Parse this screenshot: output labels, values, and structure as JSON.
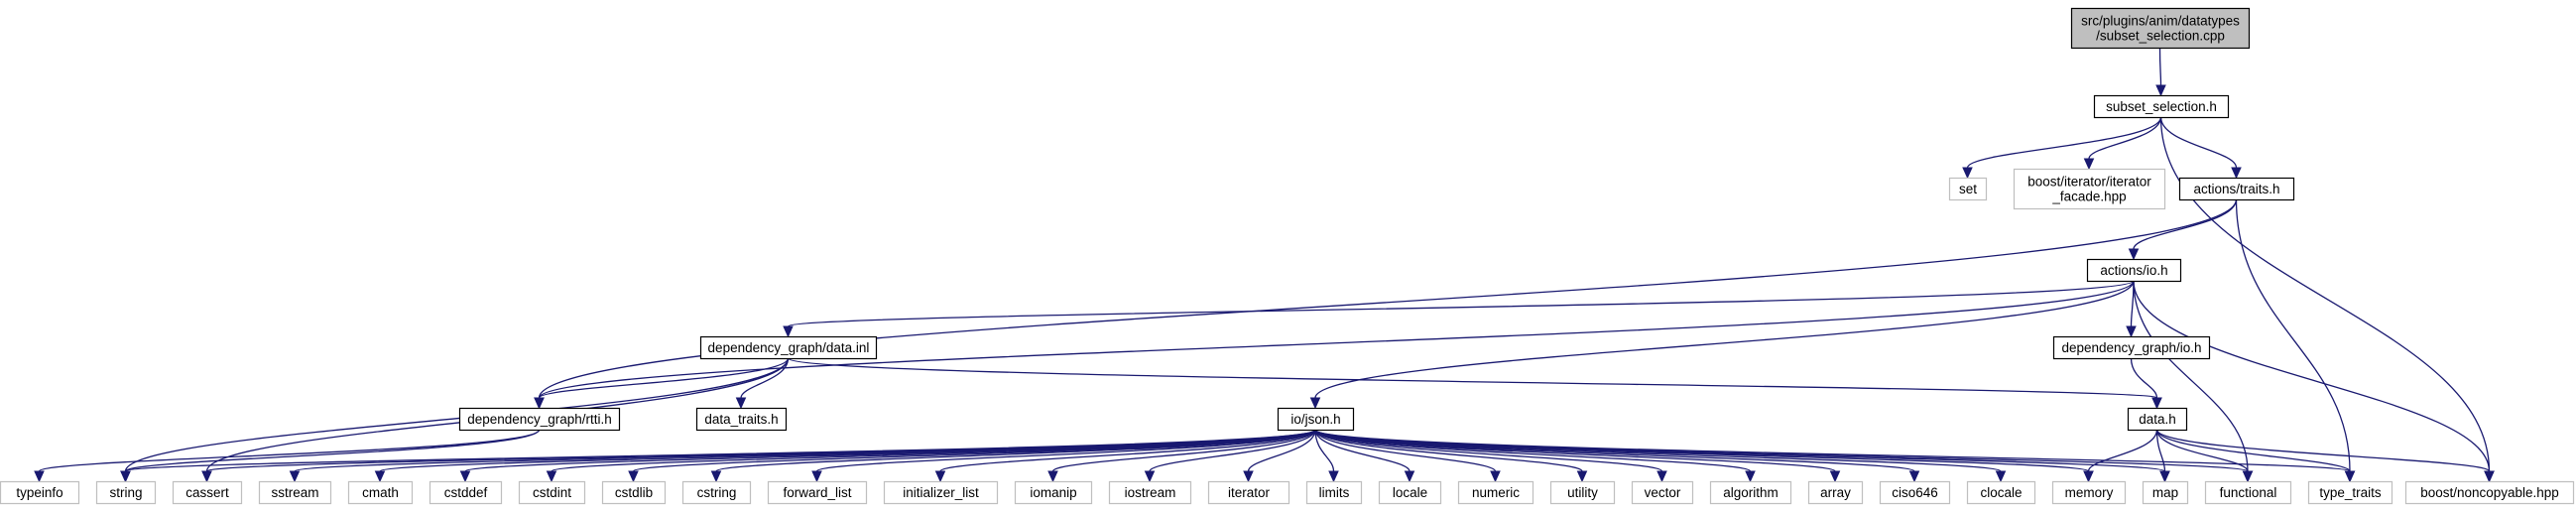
{
  "diagram": {
    "nodes": [
      {
        "id": "root",
        "lines": [
          "src/plugins/anim/datatypes",
          "/subset_selection.cpp"
        ],
        "style": "main"
      },
      {
        "id": "subset_selection_h",
        "lines": [
          "subset_selection.h"
        ],
        "style": "solid"
      },
      {
        "id": "set",
        "lines": [
          "set"
        ],
        "style": "ext"
      },
      {
        "id": "iterator_facade",
        "lines": [
          "boost/iterator/iterator",
          "_facade.hpp"
        ],
        "style": "ext"
      },
      {
        "id": "actions_traits",
        "lines": [
          "actions/traits.h"
        ],
        "style": "solid"
      },
      {
        "id": "boost_noncopyable",
        "lines": [
          "boost/noncopyable.hpp"
        ],
        "style": "ext"
      },
      {
        "id": "actions_io",
        "lines": [
          "actions/io.h"
        ],
        "style": "solid"
      },
      {
        "id": "dg_data_inl",
        "lines": [
          "dependency_graph/data.inl"
        ],
        "style": "solid"
      },
      {
        "id": "dg_io",
        "lines": [
          "dependency_graph/io.h"
        ],
        "style": "solid"
      },
      {
        "id": "dg_rtti",
        "lines": [
          "dependency_graph/rtti.h"
        ],
        "style": "solid"
      },
      {
        "id": "data_traits",
        "lines": [
          "data_traits.h"
        ],
        "style": "solid"
      },
      {
        "id": "io_json",
        "lines": [
          "io/json.h"
        ],
        "style": "solid"
      },
      {
        "id": "data_h",
        "lines": [
          "data.h"
        ],
        "style": "solid"
      },
      {
        "id": "typeinfo",
        "lines": [
          "typeinfo"
        ],
        "style": "ext"
      },
      {
        "id": "string",
        "lines": [
          "string"
        ],
        "style": "ext"
      },
      {
        "id": "cassert",
        "lines": [
          "cassert"
        ],
        "style": "ext"
      },
      {
        "id": "sstream",
        "lines": [
          "sstream"
        ],
        "style": "ext"
      },
      {
        "id": "cmath",
        "lines": [
          "cmath"
        ],
        "style": "ext"
      },
      {
        "id": "cstddef",
        "lines": [
          "cstddef"
        ],
        "style": "ext"
      },
      {
        "id": "cstdint",
        "lines": [
          "cstdint"
        ],
        "style": "ext"
      },
      {
        "id": "cstdlib",
        "lines": [
          "cstdlib"
        ],
        "style": "ext"
      },
      {
        "id": "cstring",
        "lines": [
          "cstring"
        ],
        "style": "ext"
      },
      {
        "id": "forward_list",
        "lines": [
          "forward_list"
        ],
        "style": "ext"
      },
      {
        "id": "initializer_list",
        "lines": [
          "initializer_list"
        ],
        "style": "ext"
      },
      {
        "id": "iomanip",
        "lines": [
          "iomanip"
        ],
        "style": "ext"
      },
      {
        "id": "iostream",
        "lines": [
          "iostream"
        ],
        "style": "ext"
      },
      {
        "id": "iterator",
        "lines": [
          "iterator"
        ],
        "style": "ext"
      },
      {
        "id": "limits",
        "lines": [
          "limits"
        ],
        "style": "ext"
      },
      {
        "id": "locale",
        "lines": [
          "locale"
        ],
        "style": "ext"
      },
      {
        "id": "numeric",
        "lines": [
          "numeric"
        ],
        "style": "ext"
      },
      {
        "id": "utility",
        "lines": [
          "utility"
        ],
        "style": "ext"
      },
      {
        "id": "vector",
        "lines": [
          "vector"
        ],
        "style": "ext"
      },
      {
        "id": "algorithm",
        "lines": [
          "algorithm"
        ],
        "style": "ext"
      },
      {
        "id": "array",
        "lines": [
          "array"
        ],
        "style": "ext"
      },
      {
        "id": "ciso646",
        "lines": [
          "ciso646"
        ],
        "style": "ext"
      },
      {
        "id": "clocale",
        "lines": [
          "clocale"
        ],
        "style": "ext"
      },
      {
        "id": "memory",
        "lines": [
          "memory"
        ],
        "style": "ext"
      },
      {
        "id": "map",
        "lines": [
          "map"
        ],
        "style": "ext"
      },
      {
        "id": "functional",
        "lines": [
          "functional"
        ],
        "style": "ext"
      },
      {
        "id": "type_traits",
        "lines": [
          "type_traits"
        ],
        "style": "ext"
      }
    ],
    "edges": [
      [
        "root",
        "subset_selection_h"
      ],
      [
        "subset_selection_h",
        "set"
      ],
      [
        "subset_selection_h",
        "iterator_facade"
      ],
      [
        "subset_selection_h",
        "actions_traits"
      ],
      [
        "subset_selection_h",
        "boost_noncopyable"
      ],
      [
        "actions_traits",
        "dg_rtti"
      ],
      [
        "actions_traits",
        "actions_io"
      ],
      [
        "actions_traits",
        "type_traits"
      ],
      [
        "actions_io",
        "dg_rtti"
      ],
      [
        "actions_io",
        "dg_data_inl"
      ],
      [
        "actions_io",
        "io_json"
      ],
      [
        "actions_io",
        "dg_io"
      ],
      [
        "actions_io",
        "functional"
      ],
      [
        "actions_io",
        "boost_noncopyable"
      ],
      [
        "dg_data_inl",
        "dg_rtti"
      ],
      [
        "dg_data_inl",
        "data_traits"
      ],
      [
        "dg_data_inl",
        "cassert"
      ],
      [
        "dg_data_inl",
        "string"
      ],
      [
        "dg_data_inl",
        "data_h"
      ],
      [
        "dg_io",
        "data_h"
      ],
      [
        "dg_rtti",
        "typeinfo"
      ],
      [
        "dg_rtti",
        "string"
      ],
      [
        "io_json",
        "string"
      ],
      [
        "io_json",
        "cassert"
      ],
      [
        "io_json",
        "sstream"
      ],
      [
        "io_json",
        "cmath"
      ],
      [
        "io_json",
        "cstddef"
      ],
      [
        "io_json",
        "cstdint"
      ],
      [
        "io_json",
        "cstdlib"
      ],
      [
        "io_json",
        "cstring"
      ],
      [
        "io_json",
        "forward_list"
      ],
      [
        "io_json",
        "initializer_list"
      ],
      [
        "io_json",
        "iomanip"
      ],
      [
        "io_json",
        "iostream"
      ],
      [
        "io_json",
        "iterator"
      ],
      [
        "io_json",
        "limits"
      ],
      [
        "io_json",
        "locale"
      ],
      [
        "io_json",
        "numeric"
      ],
      [
        "io_json",
        "utility"
      ],
      [
        "io_json",
        "vector"
      ],
      [
        "io_json",
        "algorithm"
      ],
      [
        "io_json",
        "array"
      ],
      [
        "io_json",
        "ciso646"
      ],
      [
        "io_json",
        "clocale"
      ],
      [
        "io_json",
        "memory"
      ],
      [
        "io_json",
        "map"
      ],
      [
        "io_json",
        "functional"
      ],
      [
        "io_json",
        "type_traits"
      ],
      [
        "data_h",
        "memory"
      ],
      [
        "data_h",
        "map"
      ],
      [
        "data_h",
        "functional"
      ],
      [
        "data_h",
        "type_traits"
      ],
      [
        "data_h",
        "boost_noncopyable"
      ]
    ]
  }
}
